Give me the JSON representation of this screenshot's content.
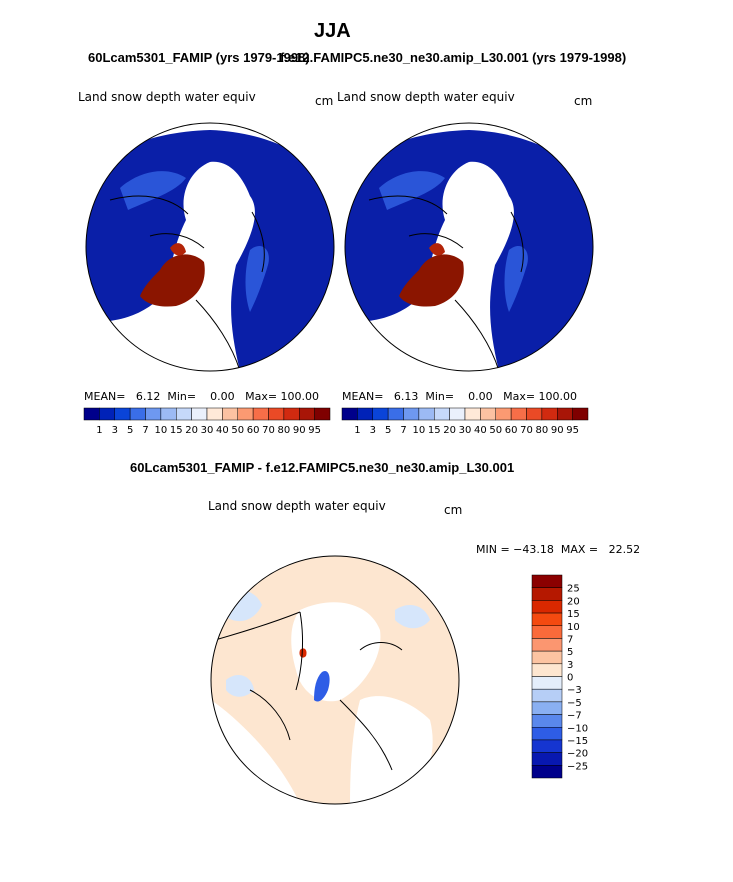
{
  "page": {
    "title": "JJA",
    "left_subtitle": "60Lcam5301_FAMIP (yrs 1979-1998)",
    "right_subtitle": "f.e12.FAMIPC5.ne30_ne30.amip_L30.001 (yrs 1979-1998)",
    "diff_subtitle": "60Lcam5301_FAMIP - f.e12.FAMIPC5.ne30_ne30.amip_L30.001"
  },
  "chart_data": [
    {
      "type": "heatmap",
      "projection": "polar stereographic (north pole)",
      "variable": "Land snow depth water equiv",
      "units": "cm",
      "stats_text": "MEAN=   6.12  Min=    0.00   Max= 100.00",
      "stats": {
        "mean": 6.12,
        "min": 0.0,
        "max": 100.0
      },
      "legend_labels": [
        "1",
        "3",
        "5",
        "7",
        "10",
        "15",
        "20",
        "30",
        "40",
        "50",
        "60",
        "70",
        "80",
        "90",
        "95"
      ],
      "colors": [
        "#00008b",
        "#0022b8",
        "#0a44d8",
        "#3a6ee8",
        "#6e98f0",
        "#9cbaf4",
        "#c6d9fa",
        "#eaf0fc",
        "#ffe9d8",
        "#fcc2a2",
        "#fb9a72",
        "#f76e48",
        "#ea4a26",
        "#d12a10",
        "#a81507",
        "#7f0000"
      ]
    },
    {
      "type": "heatmap",
      "projection": "polar stereographic (north pole)",
      "variable": "Land snow depth water equiv",
      "units": "cm",
      "stats_text": "MEAN=   6.13  Min=    0.00   Max= 100.00",
      "stats": {
        "mean": 6.13,
        "min": 0.0,
        "max": 100.0
      },
      "legend_labels": [
        "1",
        "3",
        "5",
        "7",
        "10",
        "15",
        "20",
        "30",
        "40",
        "50",
        "60",
        "70",
        "80",
        "90",
        "95"
      ],
      "colors": [
        "#00008b",
        "#0022b8",
        "#0a44d8",
        "#3a6ee8",
        "#6e98f0",
        "#9cbaf4",
        "#c6d9fa",
        "#eaf0fc",
        "#ffe9d8",
        "#fcc2a2",
        "#fb9a72",
        "#f76e48",
        "#ea4a26",
        "#d12a10",
        "#a81507",
        "#7f0000"
      ]
    },
    {
      "type": "heatmap",
      "projection": "polar stereographic (north pole)",
      "variable": "Land snow depth water equiv",
      "units": "cm",
      "minmax_text": "MIN = −43.18  MAX =   22.52",
      "stats": {
        "min": -43.18,
        "max": 22.52
      },
      "legend_labels": [
        "25",
        "20",
        "15",
        "10",
        "7",
        "5",
        "3",
        "0",
        "−3",
        "−5",
        "−7",
        "−10",
        "−15",
        "−20",
        "−25"
      ],
      "colors": [
        "#8b0000",
        "#b51800",
        "#d92800",
        "#f44a10",
        "#fa6a3a",
        "#fb9670",
        "#fcc4a2",
        "#fde6d0",
        "#e4eefb",
        "#b6cef6",
        "#8ab0f2",
        "#5a88ec",
        "#2e5de6",
        "#1535d0",
        "#0818b0",
        "#00008b"
      ]
    }
  ]
}
